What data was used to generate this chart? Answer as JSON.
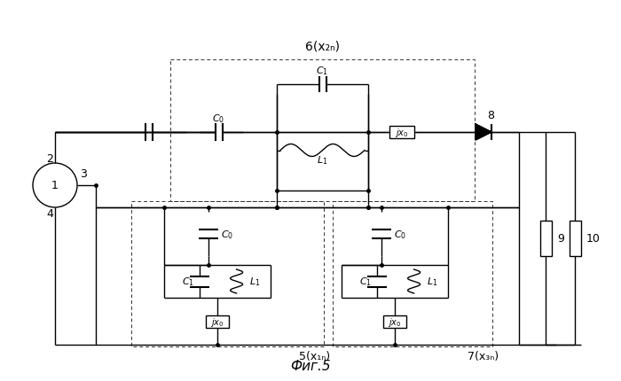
{
  "title": "Фиг.5",
  "label_6": "6(x₂ₙ)",
  "label_5": "5(x₁ₙ)",
  "label_7": "7(x₃ₙ)",
  "background_color": "#ffffff",
  "line_color": "#000000",
  "fig_width": 7.0,
  "fig_height": 4.31
}
